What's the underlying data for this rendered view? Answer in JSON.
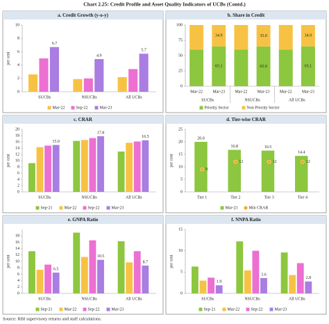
{
  "title": "Chart 2.25: Credit Profile and Asset Quality Indicators of UCBs (Contd.)",
  "source": "Source: RBI supervisory returns and staff calculations.",
  "chart_data": [
    {
      "type": "bar",
      "title": "a. Credit Growth (y-o-y)",
      "ylabel": "per cent",
      "categories": [
        "SUCBs",
        "NSUCBs",
        "All UCBs"
      ],
      "ylim": [
        0,
        10
      ],
      "yticks": [
        0,
        2,
        4,
        6,
        8,
        10
      ],
      "grid": false,
      "series": [
        {
          "name": "Mar-22",
          "color": "#f7c244",
          "values": [
            2.6,
            1.9,
            2.2
          ]
        },
        {
          "name": "Sep-22",
          "color": "#ec6fd2",
          "values": [
            5.0,
            2.0,
            3.4
          ]
        },
        {
          "name": "Mar-23",
          "color": "#a97de2",
          "values": [
            6.7,
            4.9,
            5.7
          ],
          "show_labels": true
        }
      ]
    },
    {
      "type": "stacked_bar",
      "title": "b. Share in Credit",
      "categories": [
        "Mar-22",
        "Mar-23",
        "Mar-22",
        "Mar-23",
        "Mar-22",
        "Mar-23"
      ],
      "group_labels": [
        "SUCBs",
        "NSUCBs",
        "All UCBs"
      ],
      "ylim": [
        0,
        100
      ],
      "yticks": [
        0,
        25,
        50,
        75,
        100
      ],
      "grid": false,
      "series": [
        {
          "name": "Priority Sector",
          "color": "#8dc63f",
          "values": [
            60,
            65.1,
            60,
            65.0,
            60,
            65.1
          ],
          "value_labels": [
            null,
            "65.1",
            null,
            "65.0",
            null,
            "65.1"
          ]
        },
        {
          "name": "Non Priority Sector",
          "color": "#f7c244",
          "values": [
            40,
            34.9,
            40,
            35.0,
            40,
            34.9
          ],
          "value_labels": [
            null,
            "34.9",
            null,
            "35.0",
            null,
            "34.9"
          ]
        }
      ]
    },
    {
      "type": "bar",
      "title": "c. CRAR",
      "ylabel": "per cent",
      "categories": [
        "SUCBs",
        "NSUCBs",
        "All UCBs"
      ],
      "ylim": [
        0,
        20
      ],
      "yticks": [
        0,
        2,
        4,
        6,
        8,
        10,
        12,
        14,
        16,
        18,
        20
      ],
      "grid": false,
      "series": [
        {
          "name": "Sep-21",
          "color": "#8dc63f",
          "values": [
            9.2,
            16.3,
            12.9
          ]
        },
        {
          "name": "Mar-22",
          "color": "#f7c244",
          "values": [
            14.3,
            16.6,
            15.7
          ]
        },
        {
          "name": "Sep-22",
          "color": "#ec6fd2",
          "values": [
            14.8,
            17.2,
            16.1
          ]
        },
        {
          "name": "Mar-23",
          "color": "#a97de2",
          "values": [
            15.0,
            17.8,
            16.5
          ],
          "value_labels": [
            "15.0",
            "17.8",
            "16.5"
          ]
        }
      ]
    },
    {
      "type": "bar",
      "title": "d. Tier-wise CRAR",
      "ylabel": "per cent",
      "categories": [
        "Tier 1",
        "Tier 2",
        "Tier 3",
        "Tier 4"
      ],
      "ylim": [
        0,
        25
      ],
      "yticks": [
        0,
        5,
        10,
        15,
        20,
        25
      ],
      "grid": false,
      "series": [
        {
          "name": "Mar-23",
          "color": "#8dc63f",
          "values": [
            20.0,
            16.8,
            16.5,
            14.4
          ],
          "value_labels": [
            "20.0",
            "16.8",
            "16.5",
            "14.4"
          ]
        },
        {
          "name": "Min CRAR",
          "type": "scatter",
          "color": "#f5a623",
          "values": [
            9,
            12,
            12,
            12
          ],
          "show_labels": true
        }
      ]
    },
    {
      "type": "bar",
      "title": "e. GNPA Ratio",
      "ylabel": "per cent",
      "categories": [
        "SUCBs",
        "NSUCBs",
        "All UCBs"
      ],
      "ylim": [
        0,
        20
      ],
      "yticks": [
        0,
        2,
        4,
        6,
        8,
        10,
        12,
        14,
        16,
        18
      ],
      "grid": false,
      "series": [
        {
          "name": "Sep-21",
          "color": "#8dc63f",
          "values": [
            13.2,
            19.0,
            16.3
          ]
        },
        {
          "name": "Mar-22",
          "color": "#f7c244",
          "values": [
            7.4,
            11.4,
            9.7
          ]
        },
        {
          "name": "Sep-22",
          "color": "#ec6fd2",
          "values": [
            9.0,
            16.6,
            13.2
          ]
        },
        {
          "name": "Mar-23",
          "color": "#a97de2",
          "values": [
            6.5,
            10.5,
            8.7
          ],
          "show_labels": true
        }
      ]
    },
    {
      "type": "bar",
      "title": "f. NNPA Ratio",
      "ylabel": "per cent",
      "categories": [
        "SUCBs",
        "NSUCBs",
        "All UCBs"
      ],
      "ylim": [
        0,
        15
      ],
      "yticks": [
        0,
        5,
        10,
        15
      ],
      "grid": false,
      "series": [
        {
          "name": "Sep-21",
          "color": "#8dc63f",
          "values": [
            6.3,
            12.2,
            9.6
          ]
        },
        {
          "name": "Mar-22",
          "color": "#f7c244",
          "values": [
            3.0,
            5.4,
            4.3
          ]
        },
        {
          "name": "Sep-22",
          "color": "#ec6fd2",
          "values": [
            3.7,
            10.0,
            7.1
          ]
        },
        {
          "name": "Mar-23",
          "color": "#a97de2",
          "values": [
            1.9,
            3.6,
            2.8
          ],
          "show_labels": true
        }
      ]
    }
  ]
}
